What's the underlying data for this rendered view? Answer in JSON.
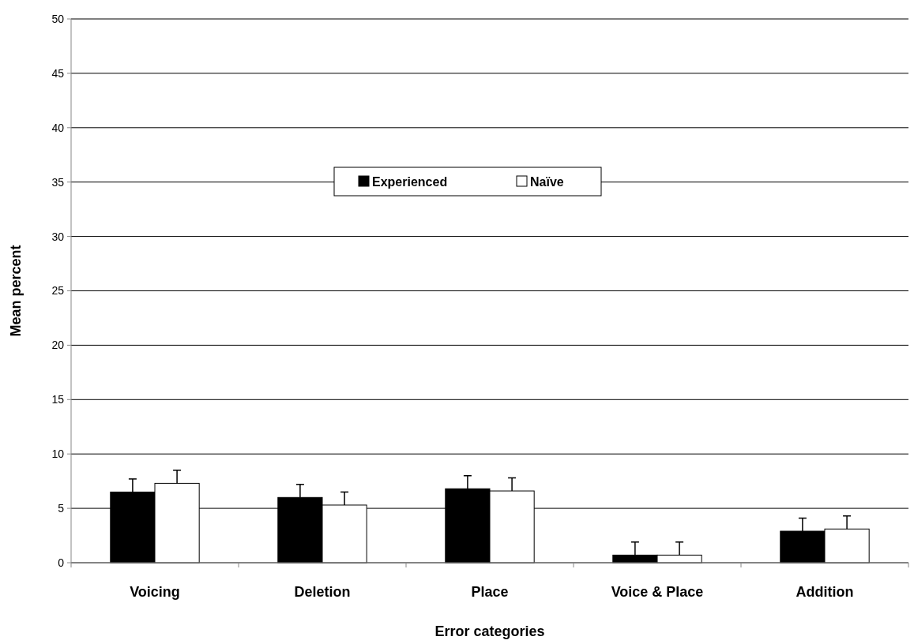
{
  "chart_data": {
    "type": "bar",
    "xlabel": "Error categories",
    "ylabel": "Mean percent",
    "categories": [
      "Voicing",
      "Deletion",
      "Place",
      "Voice & Place",
      "Addition"
    ],
    "series": [
      {
        "name": "Experienced",
        "color": "#000000",
        "values": [
          6.5,
          6.0,
          6.8,
          0.7,
          2.9
        ],
        "errors": [
          1.2,
          1.2,
          1.2,
          1.2,
          1.2
        ]
      },
      {
        "name": "Naïve",
        "color": "#ffffff",
        "values": [
          7.3,
          5.3,
          6.6,
          0.7,
          3.1
        ],
        "errors": [
          1.2,
          1.2,
          1.2,
          1.2,
          1.2
        ]
      }
    ],
    "ylim": [
      0,
      50
    ],
    "yticks": [
      0,
      5,
      10,
      15,
      20,
      25,
      30,
      35,
      40,
      45,
      50
    ],
    "grid": "y",
    "legend": "top"
  }
}
